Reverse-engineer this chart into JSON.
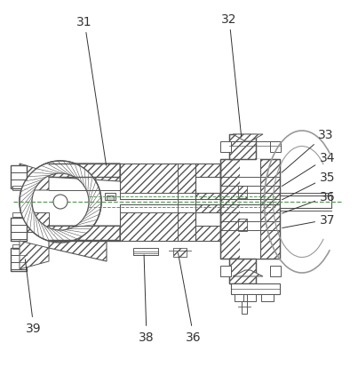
{
  "bg_color": "#ffffff",
  "line_color": "#555555",
  "label_color": "#333333",
  "green_dash": "#5a9a5a",
  "label_fontsize": 10,
  "gray_arc": "#aaaaaa"
}
